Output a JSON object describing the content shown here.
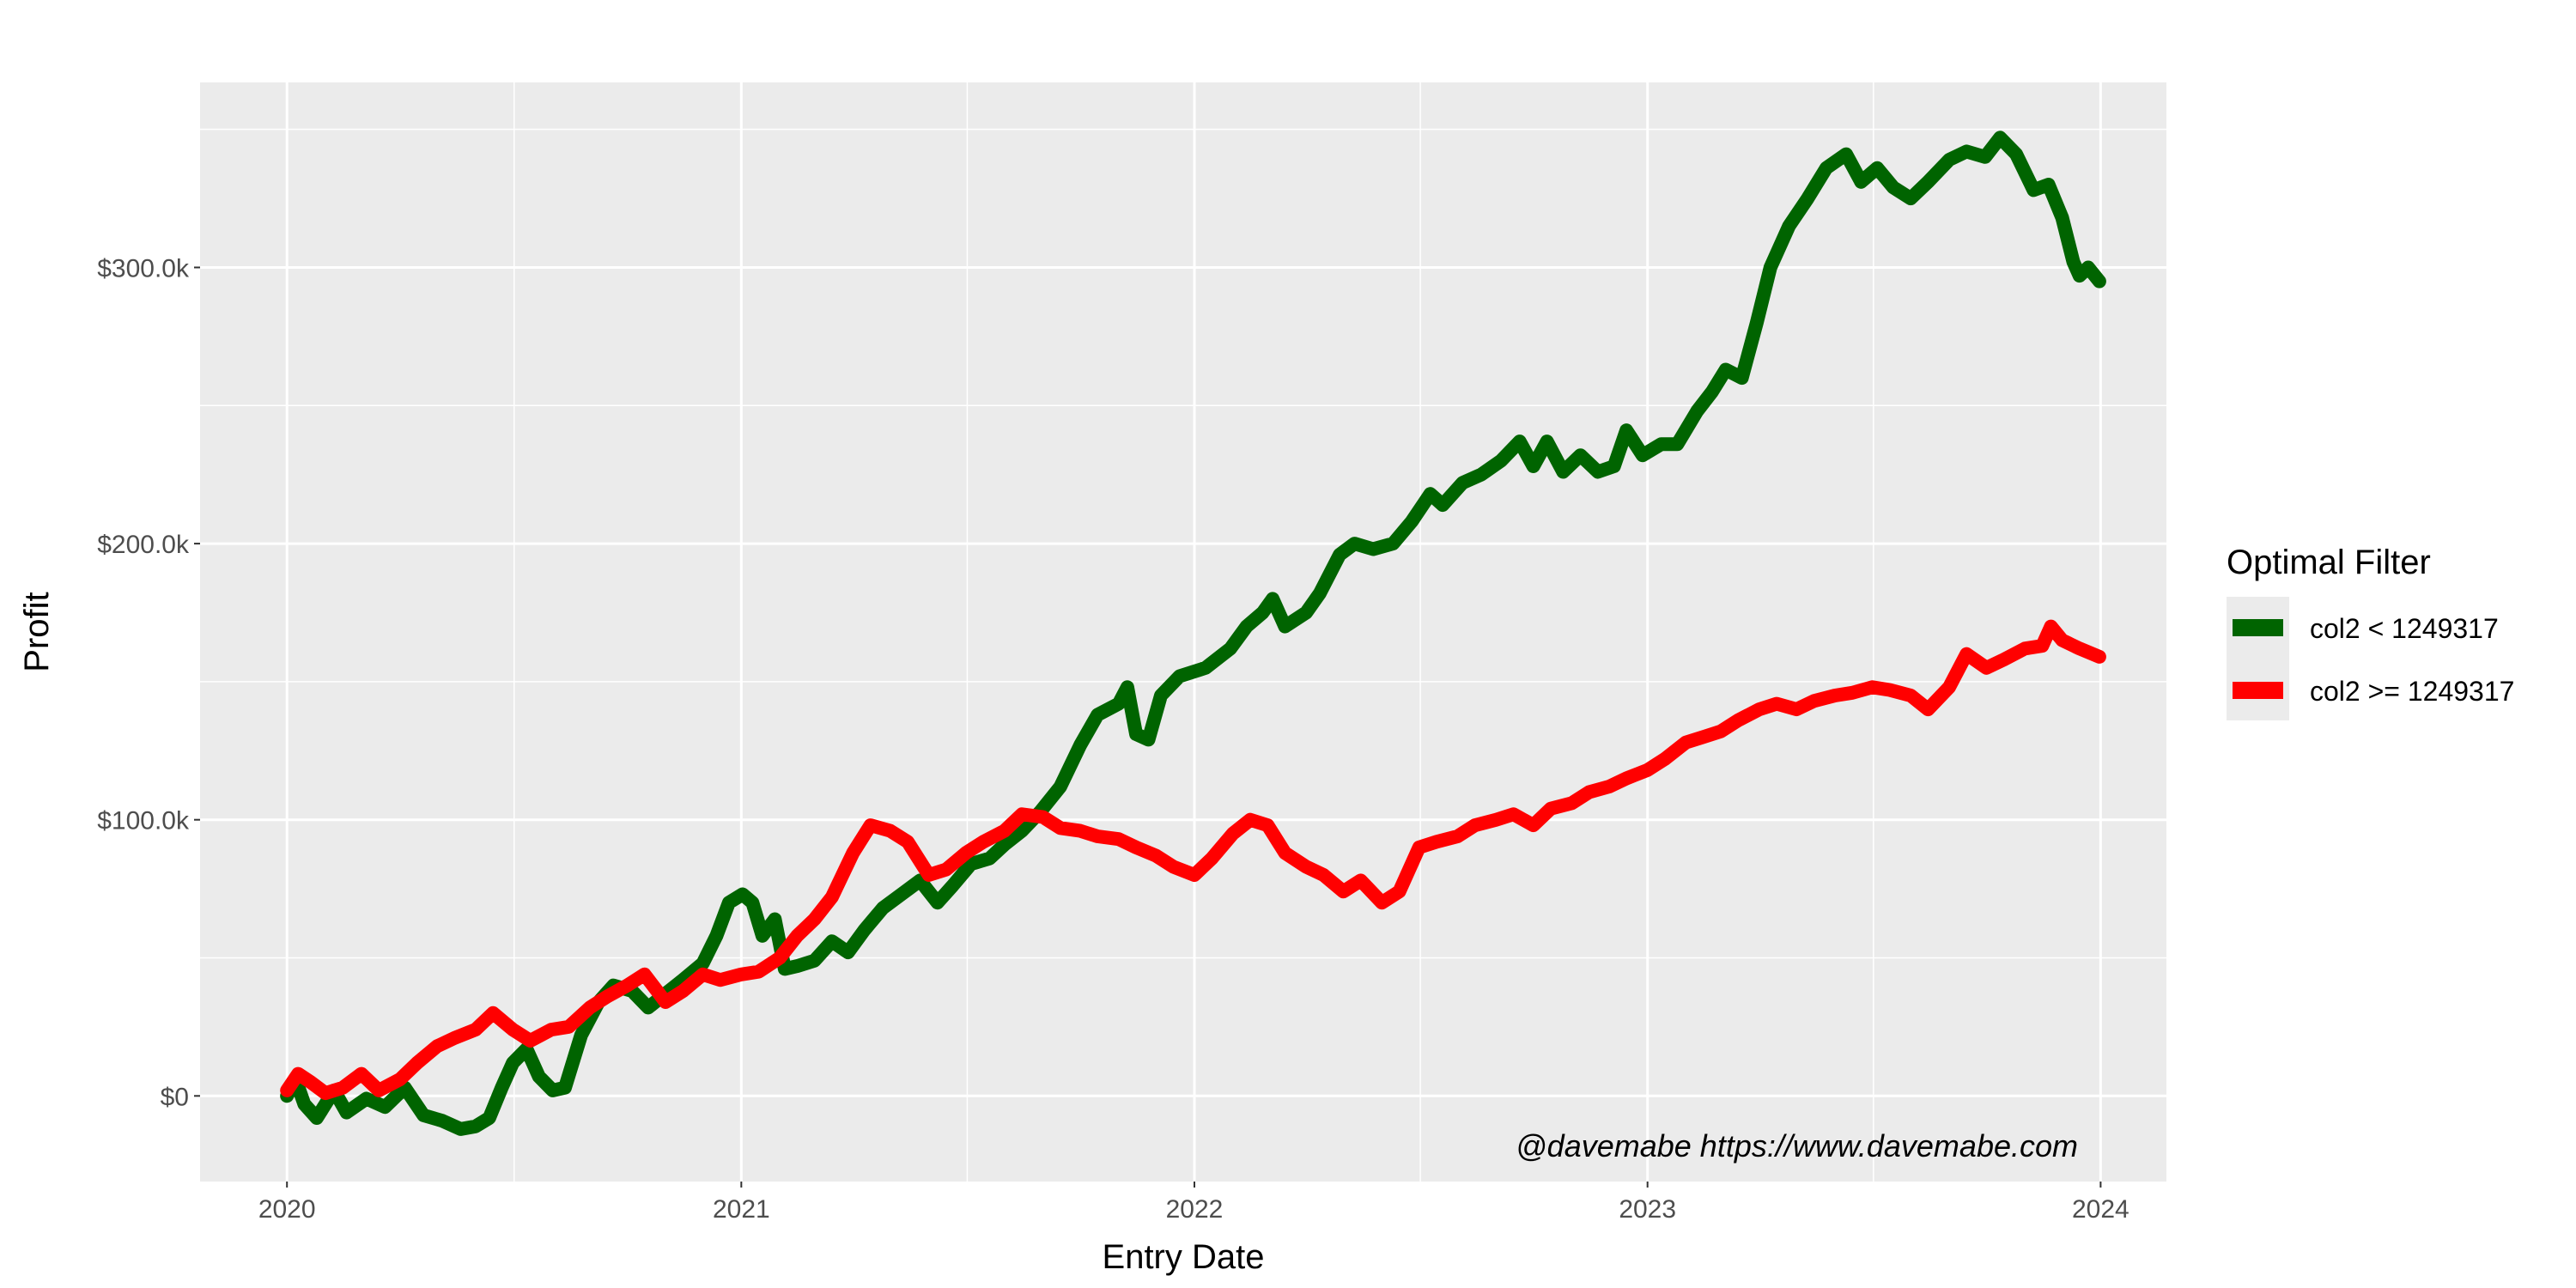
{
  "chart_data": {
    "type": "line",
    "xlabel": "Entry Date",
    "ylabel": "Profit",
    "x_ticks": [
      "2020",
      "2021",
      "2022",
      "2023",
      "2024"
    ],
    "y_ticks": [
      "$0",
      "$100.0k",
      "$200.0k",
      "$300.0k"
    ],
    "y_tick_values": [
      0,
      100000,
      200000,
      300000
    ],
    "xlim": [
      "2019-10-23",
      "2024-02-23"
    ],
    "ylim": [
      -31000,
      367000
    ],
    "grid": true,
    "legend": {
      "title": "Optimal Filter",
      "position": "right"
    },
    "annotation": "@davemabe https://www.davemabe.com",
    "series": [
      {
        "name": "col2 < 1249317",
        "color": "#006400",
        "points": [
          [
            "2020-01-01",
            0
          ],
          [
            "2020-01-08",
            6000
          ],
          [
            "2020-01-15",
            -3000
          ],
          [
            "2020-01-25",
            -8000
          ],
          [
            "2020-02-08",
            2000
          ],
          [
            "2020-02-18",
            -6000
          ],
          [
            "2020-03-05",
            -1000
          ],
          [
            "2020-03-20",
            -4000
          ],
          [
            "2020-04-05",
            3000
          ],
          [
            "2020-04-20",
            -7000
          ],
          [
            "2020-05-05",
            -9000
          ],
          [
            "2020-05-20",
            -12000
          ],
          [
            "2020-06-01",
            -11000
          ],
          [
            "2020-06-12",
            -8000
          ],
          [
            "2020-06-22",
            3000
          ],
          [
            "2020-07-01",
            12000
          ],
          [
            "2020-07-12",
            17000
          ],
          [
            "2020-07-22",
            7000
          ],
          [
            "2020-08-02",
            2000
          ],
          [
            "2020-08-12",
            3000
          ],
          [
            "2020-08-25",
            22000
          ],
          [
            "2020-09-08",
            34000
          ],
          [
            "2020-09-20",
            40000
          ],
          [
            "2020-10-05",
            38000
          ],
          [
            "2020-10-18",
            32000
          ],
          [
            "2020-11-01",
            37000
          ],
          [
            "2020-11-15",
            42000
          ],
          [
            "2020-12-01",
            48000
          ],
          [
            "2020-12-12",
            58000
          ],
          [
            "2020-12-22",
            70000
          ],
          [
            "2021-01-02",
            73000
          ],
          [
            "2021-01-10",
            70000
          ],
          [
            "2021-01-18",
            58000
          ],
          [
            "2021-01-28",
            64000
          ],
          [
            "2021-02-05",
            46000
          ],
          [
            "2021-02-15",
            47000
          ],
          [
            "2021-03-01",
            49000
          ],
          [
            "2021-03-15",
            56000
          ],
          [
            "2021-03-28",
            52000
          ],
          [
            "2021-04-10",
            60000
          ],
          [
            "2021-04-25",
            68000
          ],
          [
            "2021-05-10",
            73000
          ],
          [
            "2021-05-25",
            78000
          ],
          [
            "2021-06-08",
            70000
          ],
          [
            "2021-06-20",
            76000
          ],
          [
            "2021-07-05",
            84000
          ],
          [
            "2021-07-20",
            86000
          ],
          [
            "2021-08-01",
            91000
          ],
          [
            "2021-08-15",
            96000
          ],
          [
            "2021-08-30",
            103000
          ],
          [
            "2021-09-15",
            112000
          ],
          [
            "2021-10-01",
            127000
          ],
          [
            "2021-10-15",
            138000
          ],
          [
            "2021-11-01",
            142000
          ],
          [
            "2021-11-08",
            148000
          ],
          [
            "2021-11-15",
            131000
          ],
          [
            "2021-11-25",
            129000
          ],
          [
            "2021-12-05",
            145000
          ],
          [
            "2021-12-20",
            152000
          ],
          [
            "2022-01-10",
            155000
          ],
          [
            "2022-01-30",
            162000
          ],
          [
            "2022-02-12",
            170000
          ],
          [
            "2022-02-25",
            175000
          ],
          [
            "2022-03-05",
            180000
          ],
          [
            "2022-03-15",
            170000
          ],
          [
            "2022-04-01",
            175000
          ],
          [
            "2022-04-12",
            182000
          ],
          [
            "2022-04-28",
            196000
          ],
          [
            "2022-05-10",
            200000
          ],
          [
            "2022-05-25",
            198000
          ],
          [
            "2022-06-10",
            200000
          ],
          [
            "2022-06-25",
            208000
          ],
          [
            "2022-07-10",
            218000
          ],
          [
            "2022-07-20",
            214000
          ],
          [
            "2022-08-05",
            222000
          ],
          [
            "2022-08-20",
            225000
          ],
          [
            "2022-09-05",
            230000
          ],
          [
            "2022-09-20",
            237000
          ],
          [
            "2022-10-01",
            228000
          ],
          [
            "2022-10-12",
            237000
          ],
          [
            "2022-10-25",
            226000
          ],
          [
            "2022-11-08",
            232000
          ],
          [
            "2022-11-22",
            226000
          ],
          [
            "2022-12-05",
            228000
          ],
          [
            "2022-12-15",
            241000
          ],
          [
            "2022-12-28",
            232000
          ],
          [
            "2023-01-12",
            236000
          ],
          [
            "2023-01-25",
            236000
          ],
          [
            "2023-02-10",
            248000
          ],
          [
            "2023-02-22",
            255000
          ],
          [
            "2023-03-05",
            263000
          ],
          [
            "2023-03-18",
            260000
          ],
          [
            "2023-03-30",
            280000
          ],
          [
            "2023-04-10",
            300000
          ],
          [
            "2023-04-25",
            315000
          ],
          [
            "2023-05-10",
            325000
          ],
          [
            "2023-05-25",
            336000
          ],
          [
            "2023-06-10",
            341000
          ],
          [
            "2023-06-22",
            331000
          ],
          [
            "2023-07-05",
            336000
          ],
          [
            "2023-07-18",
            329000
          ],
          [
            "2023-08-01",
            325000
          ],
          [
            "2023-08-15",
            331000
          ],
          [
            "2023-09-01",
            339000
          ],
          [
            "2023-09-15",
            342000
          ],
          [
            "2023-09-30",
            340000
          ],
          [
            "2023-10-12",
            347000
          ],
          [
            "2023-10-25",
            341000
          ],
          [
            "2023-11-08",
            328000
          ],
          [
            "2023-11-20",
            330000
          ],
          [
            "2023-12-01",
            318000
          ],
          [
            "2023-12-10",
            302000
          ],
          [
            "2023-12-15",
            297000
          ],
          [
            "2023-12-22",
            300000
          ],
          [
            "2023-12-31",
            295000
          ]
        ]
      },
      {
        "name": "col2 >= 1249317",
        "color": "#ff0000",
        "points": [
          [
            "2020-01-01",
            2000
          ],
          [
            "2020-01-10",
            8000
          ],
          [
            "2020-01-20",
            5000
          ],
          [
            "2020-02-01",
            1000
          ],
          [
            "2020-02-15",
            3000
          ],
          [
            "2020-03-01",
            8000
          ],
          [
            "2020-03-15",
            2000
          ],
          [
            "2020-04-01",
            6000
          ],
          [
            "2020-04-15",
            12000
          ],
          [
            "2020-05-01",
            18000
          ],
          [
            "2020-05-15",
            21000
          ],
          [
            "2020-06-01",
            24000
          ],
          [
            "2020-06-15",
            30000
          ],
          [
            "2020-07-01",
            24000
          ],
          [
            "2020-07-15",
            20000
          ],
          [
            "2020-08-01",
            24000
          ],
          [
            "2020-08-15",
            25000
          ],
          [
            "2020-09-01",
            32000
          ],
          [
            "2020-09-15",
            36000
          ],
          [
            "2020-10-01",
            40000
          ],
          [
            "2020-10-15",
            44000
          ],
          [
            "2020-11-01",
            34000
          ],
          [
            "2020-11-15",
            38000
          ],
          [
            "2020-12-01",
            44000
          ],
          [
            "2020-12-15",
            42000
          ],
          [
            "2021-01-01",
            44000
          ],
          [
            "2021-01-15",
            45000
          ],
          [
            "2021-02-01",
            50000
          ],
          [
            "2021-02-15",
            58000
          ],
          [
            "2021-03-01",
            64000
          ],
          [
            "2021-03-15",
            72000
          ],
          [
            "2021-04-01",
            88000
          ],
          [
            "2021-04-15",
            98000
          ],
          [
            "2021-05-01",
            96000
          ],
          [
            "2021-05-15",
            92000
          ],
          [
            "2021-06-01",
            80000
          ],
          [
            "2021-06-15",
            82000
          ],
          [
            "2021-07-01",
            88000
          ],
          [
            "2021-07-15",
            92000
          ],
          [
            "2021-08-01",
            96000
          ],
          [
            "2021-08-15",
            102000
          ],
          [
            "2021-09-01",
            101000
          ],
          [
            "2021-09-15",
            97000
          ],
          [
            "2021-10-01",
            96000
          ],
          [
            "2021-10-15",
            94000
          ],
          [
            "2021-11-01",
            93000
          ],
          [
            "2021-11-15",
            90000
          ],
          [
            "2021-12-01",
            87000
          ],
          [
            "2021-12-15",
            83000
          ],
          [
            "2022-01-01",
            80000
          ],
          [
            "2022-01-15",
            86000
          ],
          [
            "2022-02-01",
            95000
          ],
          [
            "2022-02-15",
            100000
          ],
          [
            "2022-03-01",
            98000
          ],
          [
            "2022-03-15",
            88000
          ],
          [
            "2022-04-01",
            83000
          ],
          [
            "2022-04-15",
            80000
          ],
          [
            "2022-05-01",
            74000
          ],
          [
            "2022-05-15",
            78000
          ],
          [
            "2022-06-01",
            70000
          ],
          [
            "2022-06-15",
            74000
          ],
          [
            "2022-07-01",
            90000
          ],
          [
            "2022-07-15",
            92000
          ],
          [
            "2022-08-01",
            94000
          ],
          [
            "2022-08-15",
            98000
          ],
          [
            "2022-09-01",
            100000
          ],
          [
            "2022-09-15",
            102000
          ],
          [
            "2022-10-01",
            98000
          ],
          [
            "2022-10-15",
            104000
          ],
          [
            "2022-11-01",
            106000
          ],
          [
            "2022-11-15",
            110000
          ],
          [
            "2022-12-01",
            112000
          ],
          [
            "2022-12-15",
            115000
          ],
          [
            "2023-01-01",
            118000
          ],
          [
            "2023-01-15",
            122000
          ],
          [
            "2023-02-01",
            128000
          ],
          [
            "2023-02-15",
            130000
          ],
          [
            "2023-03-01",
            132000
          ],
          [
            "2023-03-15",
            136000
          ],
          [
            "2023-04-01",
            140000
          ],
          [
            "2023-04-15",
            142000
          ],
          [
            "2023-05-01",
            140000
          ],
          [
            "2023-05-15",
            143000
          ],
          [
            "2023-06-01",
            145000
          ],
          [
            "2023-06-15",
            146000
          ],
          [
            "2023-07-01",
            148000
          ],
          [
            "2023-07-15",
            147000
          ],
          [
            "2023-08-01",
            145000
          ],
          [
            "2023-08-15",
            140000
          ],
          [
            "2023-09-01",
            148000
          ],
          [
            "2023-09-15",
            160000
          ],
          [
            "2023-10-01",
            155000
          ],
          [
            "2023-10-15",
            158000
          ],
          [
            "2023-11-01",
            162000
          ],
          [
            "2023-11-15",
            163000
          ],
          [
            "2023-11-22",
            170000
          ],
          [
            "2023-12-01",
            165000
          ],
          [
            "2023-12-15",
            162000
          ],
          [
            "2023-12-31",
            159000
          ]
        ]
      }
    ]
  }
}
